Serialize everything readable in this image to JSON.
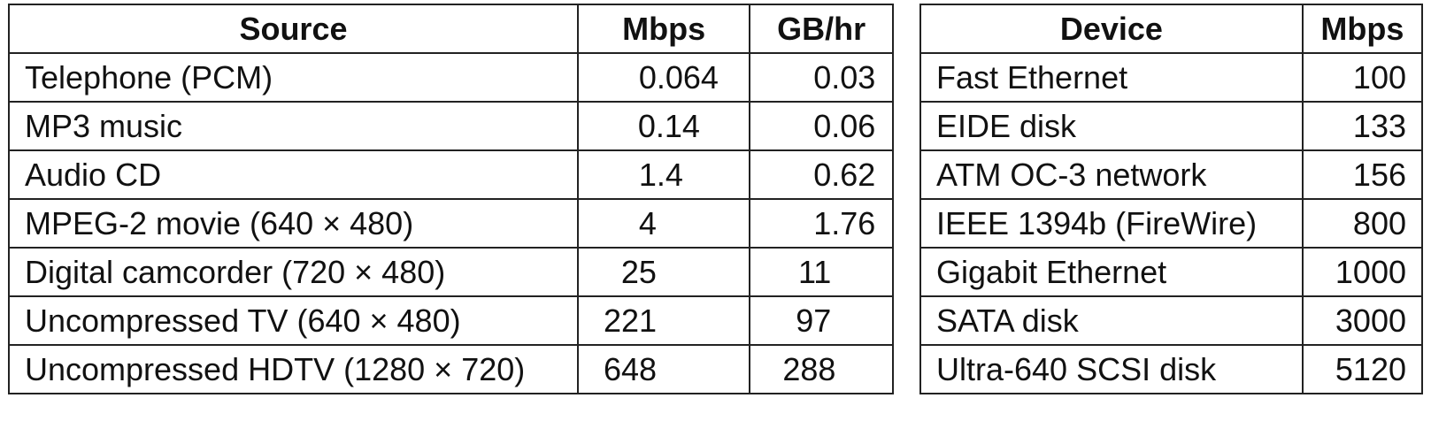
{
  "source_table": {
    "headers": {
      "source": "Source",
      "mbps": "Mbps",
      "gbhr": "GB/hr"
    },
    "rows": [
      {
        "source": "Telephone (PCM)",
        "mbps": "0.064",
        "gbhr": "0.03"
      },
      {
        "source": "MP3 music",
        "mbps": "0.14",
        "gbhr": "0.06"
      },
      {
        "source": "Audio CD",
        "mbps": "1.4",
        "gbhr": "0.62"
      },
      {
        "source": "MPEG-2 movie (640 × 480)",
        "mbps": "4",
        "gbhr": "1.76"
      },
      {
        "source": "Digital camcorder (720 × 480)",
        "mbps": "25",
        "gbhr": "11"
      },
      {
        "source": "Uncompressed TV (640 × 480)",
        "mbps": "221",
        "gbhr": "97"
      },
      {
        "source": "Uncompressed HDTV (1280 × 720)",
        "mbps": "648",
        "gbhr": "288"
      }
    ]
  },
  "device_table": {
    "headers": {
      "device": "Device",
      "mbps": "Mbps"
    },
    "rows": [
      {
        "device": "Fast Ethernet",
        "mbps": "100"
      },
      {
        "device": "EIDE disk",
        "mbps": "133"
      },
      {
        "device": "ATM OC-3 network",
        "mbps": "156"
      },
      {
        "device": "IEEE 1394b (FireWire)",
        "mbps": "800"
      },
      {
        "device": "Gigabit Ethernet",
        "mbps": "1000"
      },
      {
        "device": "SATA disk",
        "mbps": "3000"
      },
      {
        "device": "Ultra-640 SCSI disk",
        "mbps": "5120"
      }
    ]
  }
}
